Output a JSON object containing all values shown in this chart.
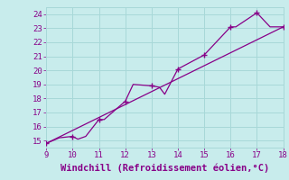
{
  "xlabel": "Windchill (Refroidissement éolien,°C)",
  "xlim": [
    9,
    18
  ],
  "ylim": [
    14.5,
    24.5
  ],
  "xticks": [
    9,
    10,
    11,
    12,
    13,
    14,
    15,
    16,
    17,
    18
  ],
  "yticks": [
    15,
    16,
    17,
    18,
    19,
    20,
    21,
    22,
    23,
    24
  ],
  "background_color": "#c8ecec",
  "grid_color": "#a8d8d8",
  "line_color": "#880088",
  "line1_x": [
    9,
    9.5,
    10,
    10.2,
    10.5,
    11,
    11.2,
    12,
    12.3,
    13,
    13.3,
    13.5,
    14,
    15,
    16,
    16.2,
    17,
    17.5,
    18
  ],
  "line1_y": [
    14.8,
    15.2,
    15.3,
    15.1,
    15.3,
    16.5,
    16.5,
    17.8,
    19.0,
    18.9,
    18.8,
    18.3,
    20.1,
    21.1,
    23.1,
    23.1,
    24.1,
    23.1,
    23.1
  ],
  "line2_x": [
    9,
    18
  ],
  "line2_y": [
    14.8,
    23.1
  ],
  "marker_x": [
    9,
    10,
    11,
    12,
    13,
    14,
    15,
    16,
    17,
    18
  ],
  "marker_y": [
    14.8,
    15.3,
    16.5,
    17.8,
    18.9,
    20.1,
    21.1,
    23.1,
    24.1,
    23.1
  ],
  "xlabel_fontsize": 7.5,
  "tick_fontsize": 6.5,
  "xlabel_color": "#880088",
  "tick_color": "#880088"
}
